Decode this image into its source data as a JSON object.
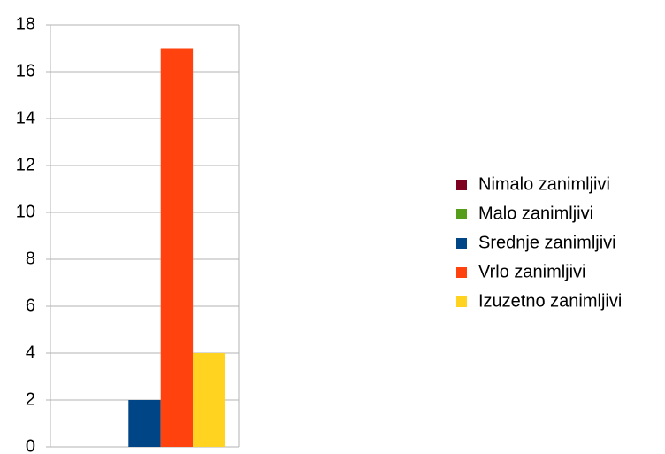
{
  "chart_data": {
    "type": "bar",
    "categories": [
      null
    ],
    "series": [
      {
        "name": "Nimalo zanimljivi",
        "color": "#7e0021",
        "values": [
          0
        ]
      },
      {
        "name": "Malo zanimljivi",
        "color": "#579d1c",
        "values": [
          0
        ]
      },
      {
        "name": "Srednje zanimljivi",
        "color": "#004586",
        "values": [
          2
        ]
      },
      {
        "name": "Vrlo zanimljivi",
        "color": "#ff420e",
        "values": [
          17
        ]
      },
      {
        "name": "Izuzetno zanimljivi",
        "color": "#ffd320",
        "values": [
          4
        ]
      }
    ],
    "ylim": [
      0,
      18
    ],
    "yticks": [
      0,
      2,
      4,
      6,
      8,
      10,
      12,
      14,
      16,
      18
    ],
    "grid": true,
    "legend": "right"
  }
}
